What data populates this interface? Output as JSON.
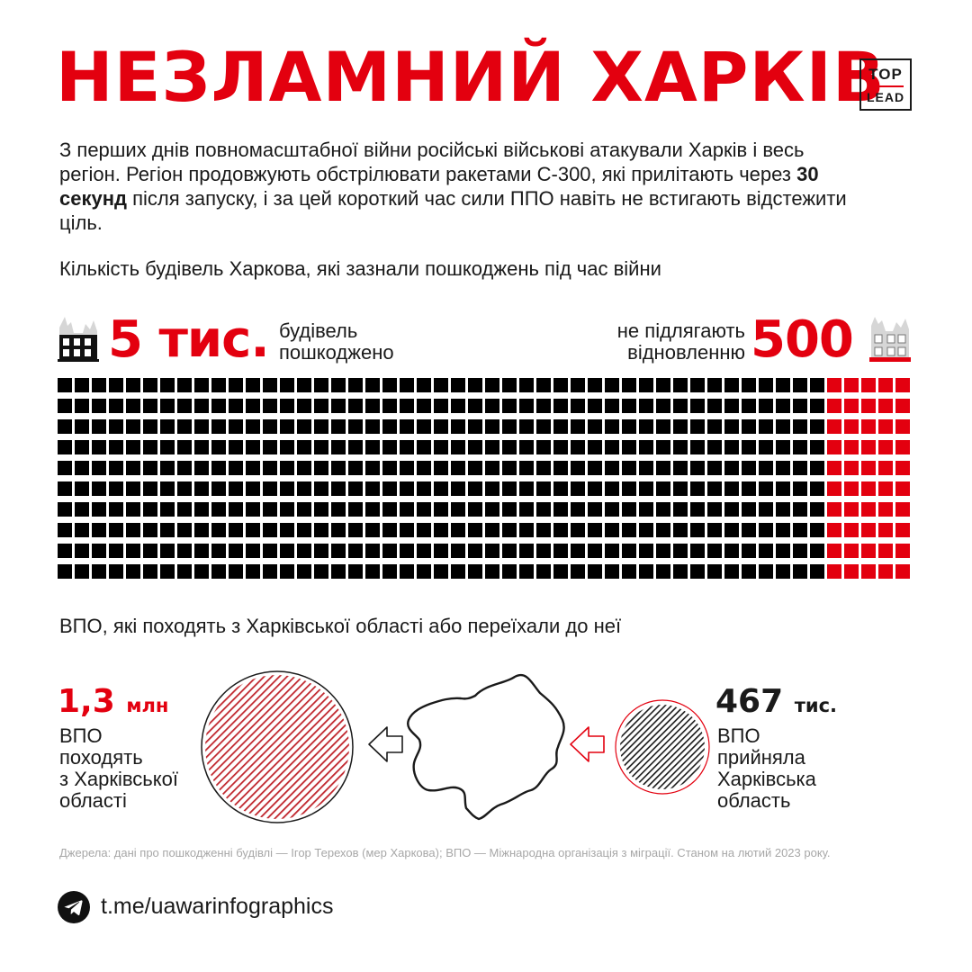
{
  "title": "НЕЗЛАМНИЙ ХАРКІВ",
  "logo": {
    "top": "TOP",
    "bottom": "LEAD"
  },
  "intro": {
    "before": "З перших днів повномасштабної війни російські військові атакували Харків і весь регіон. Регіон продовжують обстрілювати ракетами С-300, які прилітають через ",
    "bold": "30 секунд",
    "after": " після запуску, і за цей короткий час сили ППО навіть не встигають відстежити ціль."
  },
  "buildings": {
    "heading": "Кількість будівель Харкова, які зазнали пошкоджень під час війни",
    "damaged_value": "5 тис.",
    "damaged_label_1": "будівель",
    "damaged_label_2": "пошкоджено",
    "unrecoverable_label_1": "не підлягають",
    "unrecoverable_label_2": "відновленню",
    "unrecoverable_value": "500",
    "grid": {
      "rows": 10,
      "cols": 50,
      "highlight_cols": 5,
      "highlight_color": "#e3000f",
      "base_color": "#000000"
    }
  },
  "idp": {
    "heading": "ВПО, які походять з Харківської області або переїхали до неї",
    "from_value": "1,3",
    "from_unit": "млн",
    "from_label_1": "ВПО",
    "from_label_2": "походять",
    "from_label_3": "з Харківської",
    "from_label_4": "області",
    "to_value": "467",
    "to_unit": "тис.",
    "to_label_1": "ВПО",
    "to_label_2": "прийняла",
    "to_label_3": "Харківська",
    "to_label_4": "область",
    "colors": {
      "from_circle": "#c0262d",
      "to_circle": "#1a1a1a",
      "accent": "#e3000f"
    }
  },
  "sources": "Джерела: дані про пошкодженні будівлі — Ігор Терехов (мер Харкова); ВПО — Міжнародна організація з міграції. Станом на лютий 2023 року.",
  "telegram": {
    "icon": "telegram-icon",
    "link": "t.me/uawarinfographics"
  }
}
